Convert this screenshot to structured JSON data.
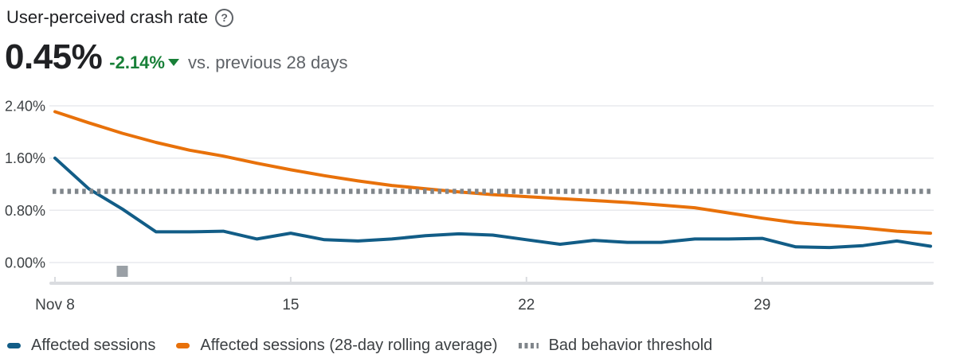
{
  "header": {
    "title": "User-perceived crash rate",
    "help_glyph": "?",
    "value": "0.45%",
    "delta": "-2.14%",
    "comparison": "vs. previous 28 days"
  },
  "colors": {
    "text_primary": "#202124",
    "text_secondary": "#5f6368",
    "axis_text": "#3c4043",
    "positive_change_green": "#188038",
    "affected_sessions_blue": "#125d87",
    "rolling_average_orange": "#e8710a",
    "threshold_gray": "#80868b",
    "gridline": "#e8eaed",
    "axis_baseline": "#dadce0",
    "release_marker_gray": "#9aa0a6"
  },
  "chart_data": {
    "type": "line",
    "title": "User-perceived crash rate over time",
    "unit": "%",
    "ylim": [
      0,
      2.4
    ],
    "grid": true,
    "legend_position": "bottom",
    "xticks": [
      {
        "day": 0,
        "label": "Nov 8"
      },
      {
        "day": 7,
        "label": "15"
      },
      {
        "day": 14,
        "label": "22"
      },
      {
        "day": 21,
        "label": "29"
      }
    ],
    "yticks": [
      {
        "value": 2.4,
        "label": "2.40%"
      },
      {
        "value": 1.6,
        "label": "1.60%"
      },
      {
        "value": 0.8,
        "label": "0.80%"
      },
      {
        "value": 0.0,
        "label": "0.00%"
      }
    ],
    "num_days": 27,
    "series": [
      {
        "name": "Affected sessions",
        "style": "solid",
        "color": "#125d87",
        "values": [
          1.6,
          1.13,
          0.82,
          0.47,
          0.47,
          0.48,
          0.36,
          0.45,
          0.35,
          0.33,
          0.36,
          0.41,
          0.44,
          0.42,
          0.35,
          0.28,
          0.34,
          0.31,
          0.31,
          0.36,
          0.36,
          0.37,
          0.24,
          0.23,
          0.26,
          0.33,
          0.25
        ]
      },
      {
        "name": "Affected sessions (28-day rolling average)",
        "style": "solid",
        "color": "#e8710a",
        "values": [
          2.31,
          2.14,
          1.98,
          1.84,
          1.72,
          1.63,
          1.52,
          1.42,
          1.33,
          1.25,
          1.18,
          1.13,
          1.08,
          1.04,
          1.01,
          0.98,
          0.95,
          0.92,
          0.88,
          0.84,
          0.76,
          0.68,
          0.61,
          0.57,
          0.53,
          0.48,
          0.45
        ]
      },
      {
        "name": "Bad behavior threshold",
        "style": "dotted",
        "color": "#80868b",
        "threshold_value": 1.09
      }
    ],
    "release_marker": {
      "day": 2,
      "color": "#9aa0a6"
    }
  }
}
